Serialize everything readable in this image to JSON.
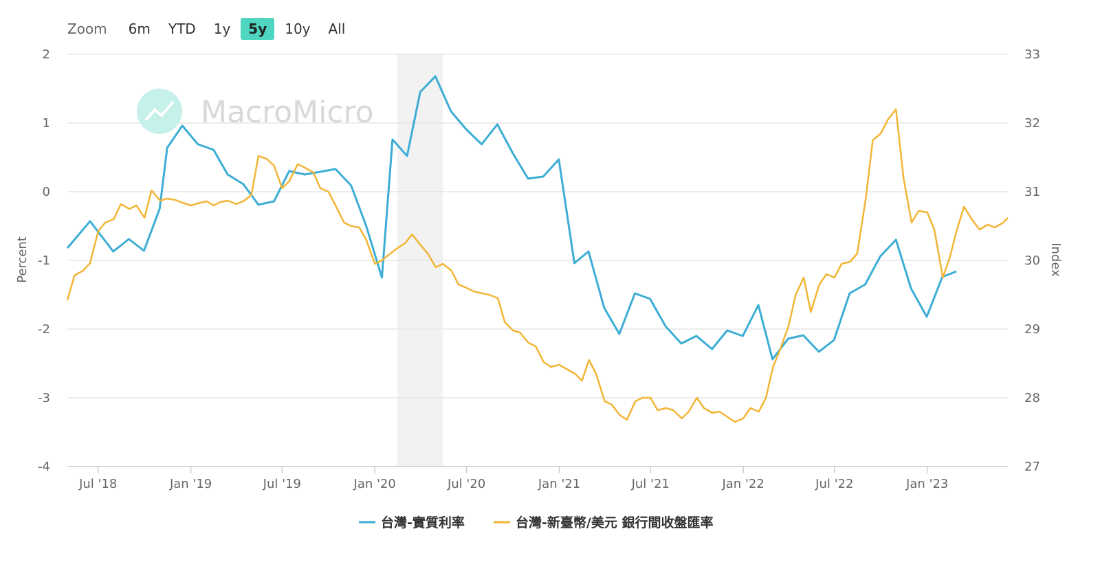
{
  "zoom": {
    "label": "Zoom",
    "buttons": [
      "6m",
      "YTD",
      "1y",
      "5y",
      "10y",
      "All"
    ],
    "active": "5y"
  },
  "watermark": "MacroMicro",
  "colors": {
    "real_rate": "#3cadd4",
    "twd_usd": "#f2b535",
    "grid": "#e6e6e6",
    "recession": "#f2f2f2"
  },
  "chart_data": {
    "type": "line",
    "x_ticks": [
      "Jul '18",
      "Jan '19",
      "Jul '19",
      "Jan '20",
      "Jul '20",
      "Jan '21",
      "Jul '21",
      "Jan '22",
      "Jul '22",
      "Jan '23"
    ],
    "y_left": {
      "title": "Percent",
      "range": [
        -4,
        2
      ],
      "ticks": [
        "2",
        "1",
        "0",
        "-1",
        "-2",
        "-3",
        "-4"
      ]
    },
    "y_right": {
      "title": "Index",
      "range": [
        27,
        33
      ],
      "ticks": [
        "33",
        "32",
        "31",
        "30",
        "29",
        "28",
        "27"
      ]
    },
    "x_range": [
      "2018-05-01",
      "2023-06-10"
    ],
    "shaded_region": [
      "2020-02-15",
      "2020-05-15"
    ],
    "series": [
      {
        "name": "台灣-實質利率",
        "axis": "left",
        "color": "#3cadd4",
        "points": [
          [
            "2018-05-01",
            -0.82
          ],
          [
            "2018-06-15",
            -0.43
          ],
          [
            "2018-07-31",
            -0.87
          ],
          [
            "2018-08-31",
            -0.69
          ],
          [
            "2018-09-30",
            -0.86
          ],
          [
            "2018-10-31",
            -0.25
          ],
          [
            "2018-11-15",
            0.64
          ],
          [
            "2018-12-15",
            0.96
          ],
          [
            "2019-01-15",
            0.69
          ],
          [
            "2019-02-15",
            0.61
          ],
          [
            "2019-03-15",
            0.25
          ],
          [
            "2019-04-15",
            0.11
          ],
          [
            "2019-05-15",
            -0.19
          ],
          [
            "2019-06-15",
            -0.14
          ],
          [
            "2019-07-15",
            0.3
          ],
          [
            "2019-08-15",
            0.25
          ],
          [
            "2019-09-15",
            0.29
          ],
          [
            "2019-10-15",
            0.33
          ],
          [
            "2019-11-15",
            0.09
          ],
          [
            "2019-12-15",
            -0.5
          ],
          [
            "2020-01-15",
            -1.25
          ],
          [
            "2020-02-05",
            0.76
          ],
          [
            "2020-03-05",
            0.52
          ],
          [
            "2020-03-31",
            1.45
          ],
          [
            "2020-04-30",
            1.68
          ],
          [
            "2020-05-31",
            1.17
          ],
          [
            "2020-06-30",
            0.91
          ],
          [
            "2020-07-31",
            0.69
          ],
          [
            "2020-08-31",
            0.98
          ],
          [
            "2020-09-30",
            0.57
          ],
          [
            "2020-10-31",
            0.19
          ],
          [
            "2020-11-30",
            0.22
          ],
          [
            "2020-12-31",
            0.47
          ],
          [
            "2021-01-31",
            -1.04
          ],
          [
            "2021-02-28",
            -0.87
          ],
          [
            "2021-03-31",
            -1.69
          ],
          [
            "2021-04-30",
            -2.07
          ],
          [
            "2021-05-31",
            -1.48
          ],
          [
            "2021-06-30",
            -1.56
          ],
          [
            "2021-07-31",
            -1.96
          ],
          [
            "2021-08-31",
            -2.21
          ],
          [
            "2021-09-30",
            -2.1
          ],
          [
            "2021-10-31",
            -2.29
          ],
          [
            "2021-11-30",
            -2.02
          ],
          [
            "2021-12-31",
            -2.1
          ],
          [
            "2022-01-31",
            -1.65
          ],
          [
            "2022-02-28",
            -2.44
          ],
          [
            "2022-03-31",
            -2.14
          ],
          [
            "2022-04-30",
            -2.09
          ],
          [
            "2022-05-31",
            -2.33
          ],
          [
            "2022-06-30",
            -2.16
          ],
          [
            "2022-07-31",
            -1.48
          ],
          [
            "2022-08-31",
            -1.35
          ],
          [
            "2022-09-30",
            -0.94
          ],
          [
            "2022-10-31",
            -0.7
          ],
          [
            "2022-11-30",
            -1.41
          ],
          [
            "2022-12-31",
            -1.82
          ],
          [
            "2023-01-31",
            -1.24
          ],
          [
            "2023-02-28",
            -1.16
          ]
        ]
      },
      {
        "name": "台灣-新臺幣/美元 銀行間收盤匯率",
        "axis": "right",
        "color": "#f2b535",
        "points": [
          [
            "2018-05-01",
            29.42
          ],
          [
            "2018-05-15",
            29.78
          ],
          [
            "2018-06-01",
            29.85
          ],
          [
            "2018-06-15",
            29.96
          ],
          [
            "2018-07-01",
            30.42
          ],
          [
            "2018-07-15",
            30.55
          ],
          [
            "2018-08-01",
            30.6
          ],
          [
            "2018-08-15",
            30.82
          ],
          [
            "2018-09-01",
            30.75
          ],
          [
            "2018-09-15",
            30.8
          ],
          [
            "2018-10-01",
            30.62
          ],
          [
            "2018-10-15",
            31.02
          ],
          [
            "2018-11-01",
            30.87
          ],
          [
            "2018-11-15",
            30.9
          ],
          [
            "2018-12-01",
            30.88
          ],
          [
            "2018-12-15",
            30.84
          ],
          [
            "2019-01-01",
            30.8
          ],
          [
            "2019-01-15",
            30.83
          ],
          [
            "2019-02-01",
            30.86
          ],
          [
            "2019-02-15",
            30.8
          ],
          [
            "2019-03-01",
            30.85
          ],
          [
            "2019-03-15",
            30.87
          ],
          [
            "2019-04-01",
            30.82
          ],
          [
            "2019-04-15",
            30.86
          ],
          [
            "2019-05-01",
            30.95
          ],
          [
            "2019-05-15",
            31.52
          ],
          [
            "2019-05-31",
            31.48
          ],
          [
            "2019-06-15",
            31.38
          ],
          [
            "2019-07-01",
            31.05
          ],
          [
            "2019-07-15",
            31.15
          ],
          [
            "2019-08-01",
            31.4
          ],
          [
            "2019-08-15",
            31.35
          ],
          [
            "2019-09-01",
            31.28
          ],
          [
            "2019-09-15",
            31.05
          ],
          [
            "2019-10-01",
            31.0
          ],
          [
            "2019-10-15",
            30.8
          ],
          [
            "2019-11-01",
            30.55
          ],
          [
            "2019-11-15",
            30.5
          ],
          [
            "2019-12-01",
            30.48
          ],
          [
            "2019-12-15",
            30.3
          ],
          [
            "2020-01-01",
            29.95
          ],
          [
            "2020-01-15",
            30.0
          ],
          [
            "2020-02-01",
            30.1
          ],
          [
            "2020-02-15",
            30.18
          ],
          [
            "2020-03-01",
            30.25
          ],
          [
            "2020-03-15",
            30.38
          ],
          [
            "2020-04-01",
            30.22
          ],
          [
            "2020-04-15",
            30.1
          ],
          [
            "2020-05-01",
            29.9
          ],
          [
            "2020-05-15",
            29.95
          ],
          [
            "2020-06-01",
            29.85
          ],
          [
            "2020-06-15",
            29.65
          ],
          [
            "2020-07-01",
            29.6
          ],
          [
            "2020-07-15",
            29.55
          ],
          [
            "2020-08-01",
            29.52
          ],
          [
            "2020-08-15",
            29.5
          ],
          [
            "2020-09-01",
            29.45
          ],
          [
            "2020-09-15",
            29.1
          ],
          [
            "2020-10-01",
            28.98
          ],
          [
            "2020-10-15",
            28.95
          ],
          [
            "2020-11-01",
            28.8
          ],
          [
            "2020-11-15",
            28.75
          ],
          [
            "2020-12-01",
            28.52
          ],
          [
            "2020-12-15",
            28.45
          ],
          [
            "2021-01-01",
            28.48
          ],
          [
            "2021-01-15",
            28.42
          ],
          [
            "2021-02-01",
            28.35
          ],
          [
            "2021-02-15",
            28.25
          ],
          [
            "2021-03-01",
            28.55
          ],
          [
            "2021-03-15",
            28.35
          ],
          [
            "2021-04-01",
            27.95
          ],
          [
            "2021-04-15",
            27.9
          ],
          [
            "2021-05-01",
            27.75
          ],
          [
            "2021-05-15",
            27.68
          ],
          [
            "2021-06-01",
            27.95
          ],
          [
            "2021-06-15",
            28.0
          ],
          [
            "2021-07-01",
            28.0
          ],
          [
            "2021-07-15",
            27.82
          ],
          [
            "2021-08-01",
            27.85
          ],
          [
            "2021-08-15",
            27.82
          ],
          [
            "2021-09-01",
            27.7
          ],
          [
            "2021-09-15",
            27.8
          ],
          [
            "2021-10-01",
            28.0
          ],
          [
            "2021-10-15",
            27.85
          ],
          [
            "2021-11-01",
            27.78
          ],
          [
            "2021-11-15",
            27.8
          ],
          [
            "2021-12-01",
            27.72
          ],
          [
            "2021-12-15",
            27.65
          ],
          [
            "2022-01-01",
            27.7
          ],
          [
            "2022-01-15",
            27.85
          ],
          [
            "2022-02-01",
            27.8
          ],
          [
            "2022-02-15",
            28.0
          ],
          [
            "2022-03-01",
            28.45
          ],
          [
            "2022-03-15",
            28.7
          ],
          [
            "2022-04-01",
            29.05
          ],
          [
            "2022-04-15",
            29.5
          ],
          [
            "2022-05-01",
            29.75
          ],
          [
            "2022-05-15",
            29.25
          ],
          [
            "2022-06-01",
            29.65
          ],
          [
            "2022-06-15",
            29.8
          ],
          [
            "2022-07-01",
            29.75
          ],
          [
            "2022-07-15",
            29.95
          ],
          [
            "2022-08-01",
            29.98
          ],
          [
            "2022-08-15",
            30.1
          ],
          [
            "2022-09-01",
            30.9
          ],
          [
            "2022-09-15",
            31.75
          ],
          [
            "2022-10-01",
            31.85
          ],
          [
            "2022-10-15",
            32.05
          ],
          [
            "2022-10-31",
            32.2
          ],
          [
            "2022-11-15",
            31.2
          ],
          [
            "2022-12-01",
            30.55
          ],
          [
            "2022-12-15",
            30.72
          ],
          [
            "2023-01-01",
            30.7
          ],
          [
            "2023-01-15",
            30.45
          ],
          [
            "2023-02-01",
            29.75
          ],
          [
            "2023-02-15",
            30.05
          ],
          [
            "2023-03-01",
            30.45
          ],
          [
            "2023-03-15",
            30.78
          ],
          [
            "2023-04-01",
            30.58
          ],
          [
            "2023-04-15",
            30.45
          ],
          [
            "2023-05-01",
            30.52
          ],
          [
            "2023-05-15",
            30.48
          ],
          [
            "2023-06-01",
            30.55
          ],
          [
            "2023-06-10",
            30.62
          ]
        ]
      }
    ],
    "legend": {
      "placement": "bottom-center"
    },
    "grid": true
  }
}
